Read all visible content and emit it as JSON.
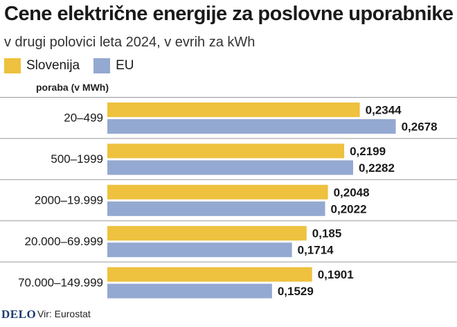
{
  "chart_data": {
    "type": "bar",
    "orientation": "horizontal",
    "title": "Cene električne energije za poslovne uporabnike",
    "subtitle": "v drugi polovici leta 2024, v evrih za kWh",
    "ylabel": "poraba (v MWh)",
    "categories": [
      "20–499",
      "500–1999",
      "2000–19.999",
      "20.000–69.999",
      "70.000–149.999"
    ],
    "series": [
      {
        "name": "Slovenija",
        "color": "#eec13f",
        "values": [
          0.2344,
          0.2199,
          0.2048,
          0.185,
          0.1901
        ],
        "labels": [
          "0,2344",
          "0,2199",
          "0,2048",
          "0,185",
          "0,1901"
        ]
      },
      {
        "name": "EU",
        "color": "#94a9d1",
        "values": [
          0.2678,
          0.2282,
          0.2022,
          0.1714,
          0.1529
        ],
        "labels": [
          "0,2678",
          "0,2282",
          "0,2022",
          "0,1714",
          "0,1529"
        ]
      }
    ],
    "xlim": [
      0,
      0.27
    ],
    "grid": false,
    "legend": "top-left"
  },
  "footer": {
    "logo": "DELO",
    "source": "Vir: Eurostat"
  }
}
